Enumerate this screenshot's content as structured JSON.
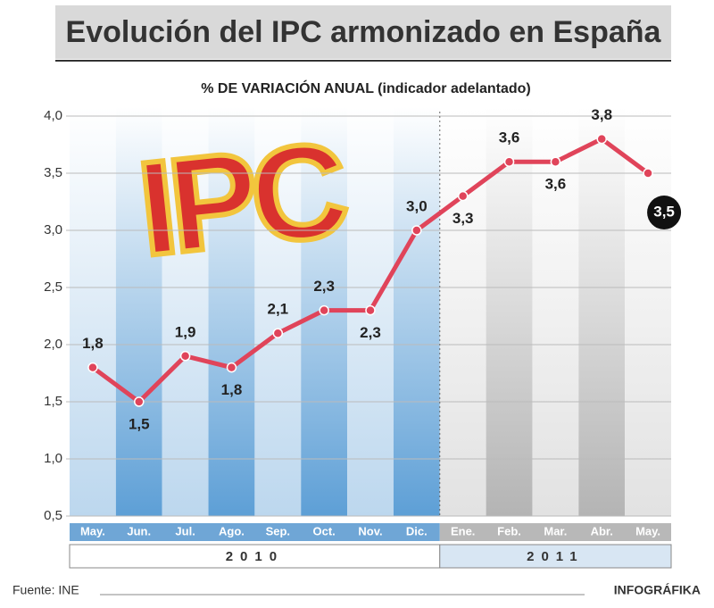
{
  "chart_data": {
    "type": "line",
    "title": "Evolución del IPC armonizado en España",
    "subtitle": "% DE VARIACIÓN ANUAL (indicador adelantado)",
    "logo": "IPC",
    "categories": [
      "May.",
      "Jun.",
      "Jul.",
      "Ago.",
      "Sep.",
      "Oct.",
      "Nov.",
      "Dic.",
      "Ene.",
      "Feb.",
      "Mar.",
      "Abr.",
      "May."
    ],
    "years": [
      "2010",
      "2011"
    ],
    "values": [
      1.8,
      1.5,
      1.9,
      1.8,
      2.1,
      2.3,
      2.3,
      3.0,
      3.3,
      3.6,
      3.6,
      3.8,
      3.5
    ],
    "value_labels": [
      "1,8",
      "1,5",
      "1,9",
      "1,8",
      "2,1",
      "2,3",
      "2,3",
      "3,0",
      "3,3",
      "3,6",
      "3,6",
      "3,8",
      "3,5"
    ],
    "color": "#e0445a",
    "ylim": [
      0.5,
      4.0
    ],
    "yticks": [
      {
        "value": 0.5,
        "label": "0,5"
      },
      {
        "value": 1.0,
        "label": "1,0"
      },
      {
        "value": 1.5,
        "label": "1,5"
      },
      {
        "value": 2.0,
        "label": "2,0"
      },
      {
        "value": 2.5,
        "label": "2,5"
      },
      {
        "value": 3.0,
        "label": "3,0"
      },
      {
        "value": 3.5,
        "label": "3,5"
      },
      {
        "value": 4.0,
        "label": "4,0"
      }
    ],
    "grid": true,
    "source": "Fuente: INE",
    "credit": "INFOGRÁFIKA"
  }
}
